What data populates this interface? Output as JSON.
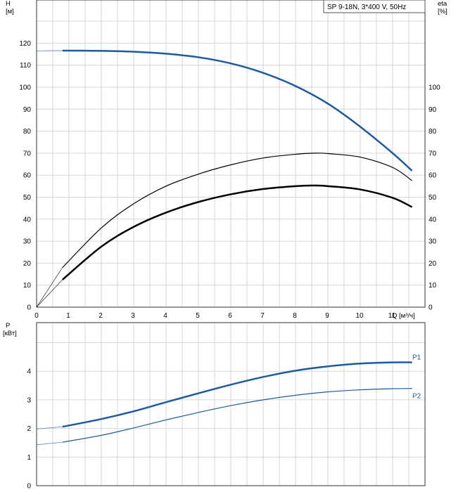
{
  "chart_data": [
    {
      "type": "line",
      "title": "SP 9-18N, 3*400 V, 50Hz",
      "xlabel": "Q [м³/ч]",
      "ylabel_left": [
        "H",
        "[м]"
      ],
      "ylabel_right": [
        "eta",
        "[%]"
      ],
      "xlim": [
        0,
        12
      ],
      "ylim_left": [
        0,
        130
      ],
      "ylim_right": [
        0,
        130
      ],
      "x_ticks": [
        0,
        1,
        2,
        3,
        4,
        5,
        6,
        7,
        8,
        9,
        10,
        11
      ],
      "y_ticks_left": [
        0,
        10,
        20,
        30,
        40,
        50,
        60,
        70,
        80,
        90,
        100,
        110,
        120
      ],
      "y_ticks_right": [
        0,
        10,
        20,
        30,
        40,
        50,
        60,
        70,
        80,
        90,
        100
      ],
      "grid": true,
      "series": [
        {
          "color": "#1e5aa0",
          "width": 2.5,
          "axis": "left",
          "x": [
            0,
            0.8,
            2,
            3,
            4,
            5,
            6,
            7,
            8,
            9,
            10,
            11,
            11.6
          ],
          "y": [
            116.5,
            116.6,
            116.5,
            116.1,
            115.2,
            113.6,
            110.8,
            106.5,
            100.5,
            92.5,
            82.0,
            70.0,
            62.0
          ],
          "dashed_x_max": 0.8
        },
        {
          "color": "#000000",
          "width": 1.2,
          "axis": "right",
          "x": [
            0,
            0.8,
            2,
            3,
            4,
            5,
            6,
            7,
            8,
            8.6,
            9,
            10,
            11,
            11.6
          ],
          "y": [
            0,
            18,
            36,
            47,
            55,
            60.5,
            64.7,
            67.8,
            69.5,
            70,
            69.8,
            68.2,
            63.5,
            57.5
          ],
          "dashed_x_max": 0.8
        },
        {
          "color": "#000000",
          "width": 2.5,
          "axis": "right",
          "x": [
            0,
            0.8,
            2,
            3,
            4,
            5,
            6,
            7,
            8,
            8.6,
            9,
            10,
            11,
            11.6
          ],
          "y": [
            0,
            12.5,
            27.5,
            36.5,
            43,
            47.8,
            51.3,
            53.7,
            55,
            55.3,
            55,
            53.5,
            49.7,
            45.5
          ],
          "dashed_x_max": 0.8
        }
      ]
    },
    {
      "type": "line",
      "ylabel": [
        "P",
        "[кВт]"
      ],
      "xlim": [
        0,
        12
      ],
      "ylim": [
        0,
        5.2
      ],
      "y_ticks": [
        0,
        1,
        2,
        3,
        4
      ],
      "grid": true,
      "series": [
        {
          "name": "P1",
          "color": "#1e5aa0",
          "width": 2.5,
          "x": [
            0,
            0.8,
            2,
            3,
            4,
            5,
            6,
            7,
            8,
            9,
            10,
            11,
            11.6
          ],
          "y": [
            1.98,
            2.06,
            2.33,
            2.6,
            2.92,
            3.23,
            3.53,
            3.8,
            4.02,
            4.17,
            4.27,
            4.31,
            4.31
          ],
          "dashed_x_max": 0.8
        },
        {
          "name": "P2",
          "color": "#1e5aa0",
          "width": 1.2,
          "x": [
            0,
            0.8,
            2,
            3,
            4,
            5,
            6,
            7,
            8,
            9,
            10,
            11,
            11.6
          ],
          "y": [
            1.43,
            1.52,
            1.76,
            2.02,
            2.3,
            2.56,
            2.8,
            3.0,
            3.16,
            3.28,
            3.35,
            3.39,
            3.4
          ],
          "dashed_x_max": 0.8
        }
      ]
    }
  ]
}
